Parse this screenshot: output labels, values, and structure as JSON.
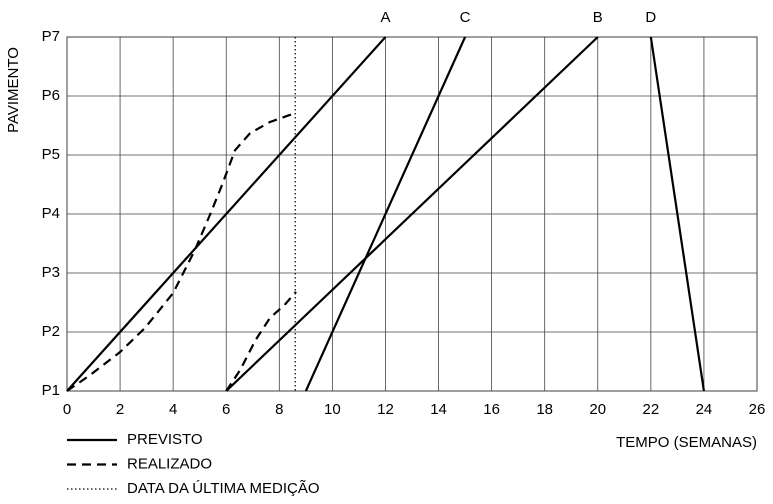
{
  "chart_data": {
    "type": "line",
    "y_label": "PAVIMENTO",
    "x_label": "TEMPO (SEMANAS)",
    "xlim": [
      0,
      26
    ],
    "xticks": [
      0,
      2,
      4,
      6,
      8,
      10,
      12,
      14,
      16,
      18,
      20,
      22,
      24,
      26
    ],
    "ylim": [
      1,
      7
    ],
    "yticks": [
      {
        "value": 1,
        "label": "P1"
      },
      {
        "value": 2,
        "label": "P2"
      },
      {
        "value": 3,
        "label": "P3"
      },
      {
        "value": 4,
        "label": "P4"
      },
      {
        "value": 5,
        "label": "P5"
      },
      {
        "value": 6,
        "label": "P6"
      },
      {
        "value": 7,
        "label": "P7"
      }
    ],
    "grid": true,
    "series": [
      {
        "name": "PREVISTO",
        "color": "#000000",
        "dash": "solid",
        "lines": [
          {
            "label": "A",
            "x": [
              0,
              12
            ],
            "values": [
              1,
              7
            ]
          },
          {
            "label": "C",
            "x": [
              9,
              15
            ],
            "values": [
              1,
              7
            ]
          },
          {
            "label": "B",
            "x": [
              6,
              20
            ],
            "values": [
              1,
              7
            ]
          },
          {
            "label": "D",
            "x": [
              22,
              24
            ],
            "values": [
              7,
              1
            ]
          }
        ]
      },
      {
        "name": "REALIZADO",
        "color": "#000000",
        "dash": "dashed",
        "lines": [
          {
            "x": [
              0,
              0.87,
              2,
              2.94,
              4,
              4.82,
              5.4,
              5.84,
              6.33,
              6.9,
              7.65,
              8.6
            ],
            "values": [
              1,
              1.27,
              1.66,
              2.07,
              2.66,
              3.39,
              4,
              4.49,
              5.08,
              5.37,
              5.56,
              5.71
            ]
          },
          {
            "x": [
              6,
              6.53,
              7.1,
              7.65,
              8.2,
              8.63
            ],
            "values": [
              1,
              1.36,
              1.86,
              2.24,
              2.46,
              2.68
            ]
          }
        ]
      }
    ],
    "reference_line": {
      "name": "DATA DA ÚLTIMA MEDIÇÃO",
      "color": "#000000",
      "dash": "dotted",
      "x": 8.6
    }
  }
}
